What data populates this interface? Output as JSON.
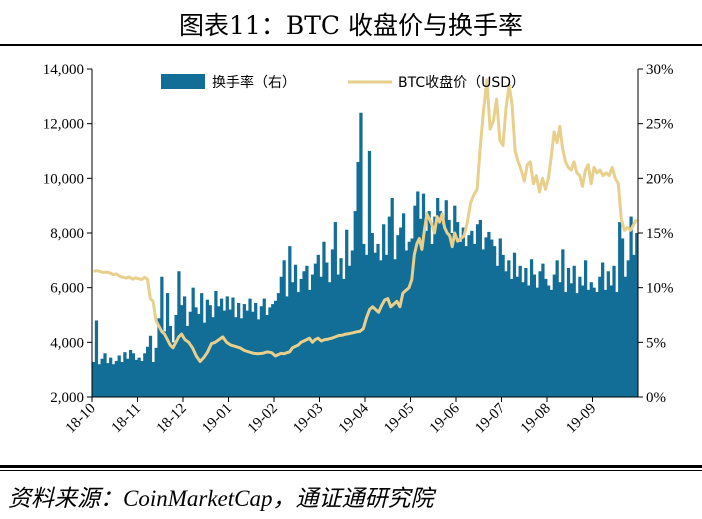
{
  "title": "图表11：BTC 收盘价与换手率",
  "source": "资料来源：CoinMarketCap，通证通研究院",
  "chart_data": {
    "type": "bar+line",
    "x_tick_labels": [
      "18-10",
      "18-11",
      "18-12",
      "19-01",
      "19-02",
      "19-03",
      "19-04",
      "19-05",
      "19-06",
      "19-07",
      "19-08",
      "19-09"
    ],
    "y_left": {
      "min": 2000,
      "max": 14000,
      "ticks": [
        "2,000",
        "4,000",
        "6,000",
        "8,000",
        "10,000",
        "12,000",
        "14,000"
      ]
    },
    "y_right": {
      "min": 0,
      "max": 30,
      "ticks": [
        "0%",
        "5%",
        "10%",
        "15%",
        "20%",
        "25%",
        "30%"
      ]
    },
    "legend": {
      "placement": "top",
      "turnover_label": "换手率（右）",
      "price_label": "BTC收盘价（USD）"
    },
    "colors": {
      "turnover": "#126E96",
      "price": "#E9CF8C"
    },
    "price_usd_monthly": [
      {
        "month": "18-10",
        "values": [
          6600,
          6620,
          6590,
          6560,
          6570,
          6540,
          6480,
          6500,
          6420,
          6380,
          6350,
          6390,
          6310,
          6360
        ]
      },
      {
        "month": "18-11",
        "values": [
          6320,
          6300,
          6380,
          6300,
          5600,
          5500,
          4800,
          4600,
          4400,
          4300,
          4100,
          3900,
          3800,
          4000,
          4200,
          4300
        ]
      },
      {
        "month": "18-12",
        "values": [
          4100,
          4000,
          3800,
          3500,
          3300,
          3450,
          3650,
          3950,
          4000,
          4100,
          4200,
          4000
        ]
      },
      {
        "month": "19-01",
        "values": [
          3900,
          3850,
          3800,
          3700,
          3650,
          3600,
          3580,
          3600,
          3650,
          3620
        ]
      },
      {
        "month": "19-02",
        "values": [
          3500,
          3550,
          3600,
          3580,
          3620,
          3650,
          3800,
          3850,
          3900,
          4000,
          4050,
          4100,
          4150,
          4000,
          4100,
          4150
        ]
      },
      {
        "month": "19-03",
        "values": [
          4050,
          4100,
          4120,
          4150,
          4200,
          4250,
          4260,
          4300,
          4320,
          4350,
          4380,
          4400,
          4500
        ]
      },
      {
        "month": "19-04",
        "values": [
          4900,
          5200,
          5300,
          5200,
          5100,
          5350,
          5550,
          5600,
          5300,
          5400,
          5500,
          5300,
          5800,
          5900,
          6000
        ]
      },
      {
        "month": "19-05",
        "values": [
          6300,
          7200,
          7600,
          7800,
          7400,
          8100,
          8700,
          8500,
          8300,
          8000,
          8600,
          8400,
          8700,
          8200,
          8000,
          7900,
          7500,
          8000
        ]
      },
      {
        "month": "19-06",
        "values": [
          7700,
          7800,
          7900,
          8400,
          9100,
          9400,
          9600,
          11200,
          12500,
          13600,
          11800,
          12100,
          12900,
          11400
        ]
      },
      {
        "month": "19-07",
        "values": [
          11200,
          12600,
          13400,
          12700,
          11000,
          10600,
          10300,
          9900,
          10500,
          10600,
          9800,
          10100,
          9500,
          10000,
          9600
        ]
      },
      {
        "month": "19-08",
        "values": [
          10000,
          10800,
          11700,
          11300,
          11900,
          11100,
          10600,
          10400,
          10300,
          10600,
          10200,
          10100,
          9700,
          10300,
          10500,
          9800
        ]
      },
      {
        "month": "19-09",
        "values": [
          10400,
          10200,
          10300,
          10100,
          10200,
          10100,
          10400,
          10000,
          9800,
          8500,
          8100,
          8200,
          8100,
          8300,
          8500
        ]
      }
    ],
    "turnover_pct_monthly": [
      {
        "month": "18-10",
        "values": [
          3.2,
          7.0,
          3.0,
          3.5,
          4.0,
          3.1,
          3.6,
          3.0,
          3.3,
          3.8,
          3.2,
          4.1,
          3.5,
          4.3,
          4.0,
          3.4
        ]
      },
      {
        "month": "18-11",
        "values": [
          3.6,
          3.3,
          4.0,
          4.6,
          5.6,
          3.2,
          4.5,
          7.2,
          11.0,
          6.0,
          9.5,
          6.5,
          5.0,
          7.5,
          11.5,
          8.4
        ]
      },
      {
        "month": "18-12",
        "values": [
          9.2,
          6.5,
          7.8,
          10.0,
          8.2,
          7.6,
          9.5,
          6.8,
          8.9,
          8.4,
          7.3,
          9.7,
          8.3,
          9.0,
          7.9,
          9.2
        ]
      },
      {
        "month": "19-01",
        "values": [
          8.0,
          9.1,
          7.3,
          8.6,
          7.2,
          8.5,
          7.9,
          9.0,
          7.8,
          8.6,
          7.1,
          8.3,
          9.0,
          7.5,
          8.2,
          8.5
        ]
      },
      {
        "month": "19-02",
        "values": [
          8.8,
          9.5,
          11.0,
          12.5,
          9.2,
          13.8,
          10.5,
          12.1,
          9.6,
          10.8,
          11.5,
          12.0,
          9.8,
          11.2,
          12.2,
          13.0
        ]
      },
      {
        "month": "19-03",
        "values": [
          11.0,
          14.2,
          12.3,
          10.5,
          13.5,
          16.0,
          11.2,
          12.7,
          10.8,
          15.3,
          12.0,
          13.4,
          17.0,
          21.5,
          26.0,
          14.0
        ]
      },
      {
        "month": "19-04",
        "values": [
          13.0,
          22.5,
          15.0,
          13.2,
          14.0,
          12.5,
          15.8,
          13.0,
          16.5,
          18.2,
          12.6,
          14.8,
          15.5,
          16.8,
          13.4,
          14.2
        ]
      },
      {
        "month": "19-05",
        "values": [
          14.5,
          17.5,
          18.8,
          16.3,
          18.6,
          15.2,
          17.0,
          14.0,
          16.5,
          18.2,
          17.0,
          15.8,
          18.0,
          16.2,
          15.0,
          17.5
        ]
      },
      {
        "month": "19-06",
        "values": [
          16.0,
          14.2,
          15.5,
          13.8,
          14.8,
          15.2,
          14.0,
          15.8,
          16.2,
          13.5,
          14.6,
          15.1,
          14.4,
          13.8,
          12.0,
          14.5
        ]
      },
      {
        "month": "19-07",
        "values": [
          13.0,
          11.5,
          12.5,
          10.8,
          13.2,
          11.0,
          12.0,
          10.5,
          11.8,
          10.2,
          12.6,
          11.2,
          10.0,
          11.5,
          12.2,
          10.8
        ]
      },
      {
        "month": "19-08",
        "values": [
          10.2,
          9.8,
          11.2,
          12.5,
          10.5,
          13.5,
          9.6,
          11.8,
          10.4,
          12.0,
          9.5,
          11.0,
          10.2,
          12.5,
          9.8,
          10.5
        ]
      },
      {
        "month": "19-09",
        "values": [
          10.0,
          9.6,
          11.0,
          12.3,
          9.8,
          11.5,
          10.2,
          12.0,
          9.6,
          16.0,
          14.5,
          11.0,
          12.5,
          16.5,
          13.0,
          15.0
        ]
      }
    ]
  }
}
